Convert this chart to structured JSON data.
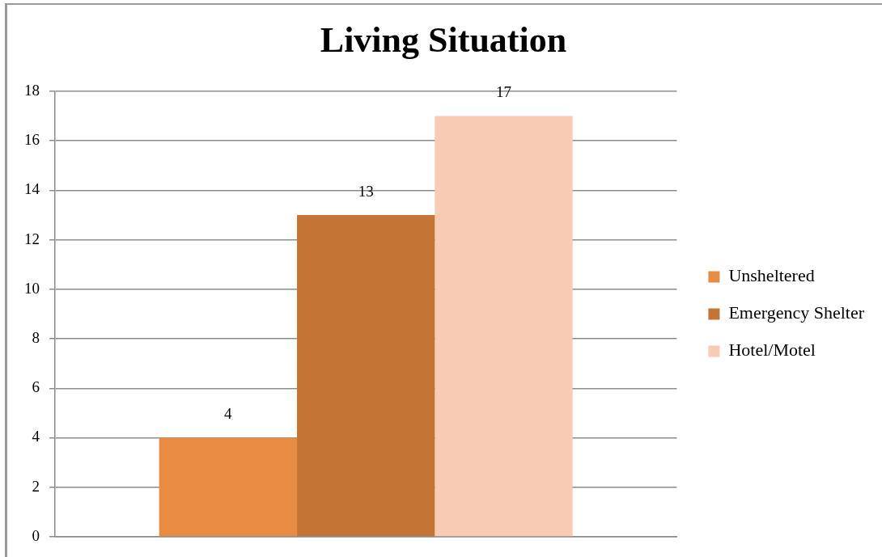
{
  "chart_data": {
    "type": "bar",
    "title": "Living Situation",
    "categories": [
      null
    ],
    "series": [
      {
        "name": "Unsheltered",
        "color": "#e78c42",
        "values": [
          4
        ]
      },
      {
        "name": "Emergency Shelter",
        "color": "#c47535",
        "values": [
          13
        ]
      },
      {
        "name": "Hotel/Motel",
        "color": "#f8cbb5",
        "values": [
          17
        ]
      }
    ],
    "ylim": [
      0,
      18
    ],
    "yticks": [
      0,
      2,
      4,
      6,
      8,
      10,
      12,
      14,
      16,
      18
    ],
    "grid": "y",
    "legend": "right",
    "data_labels": true
  }
}
